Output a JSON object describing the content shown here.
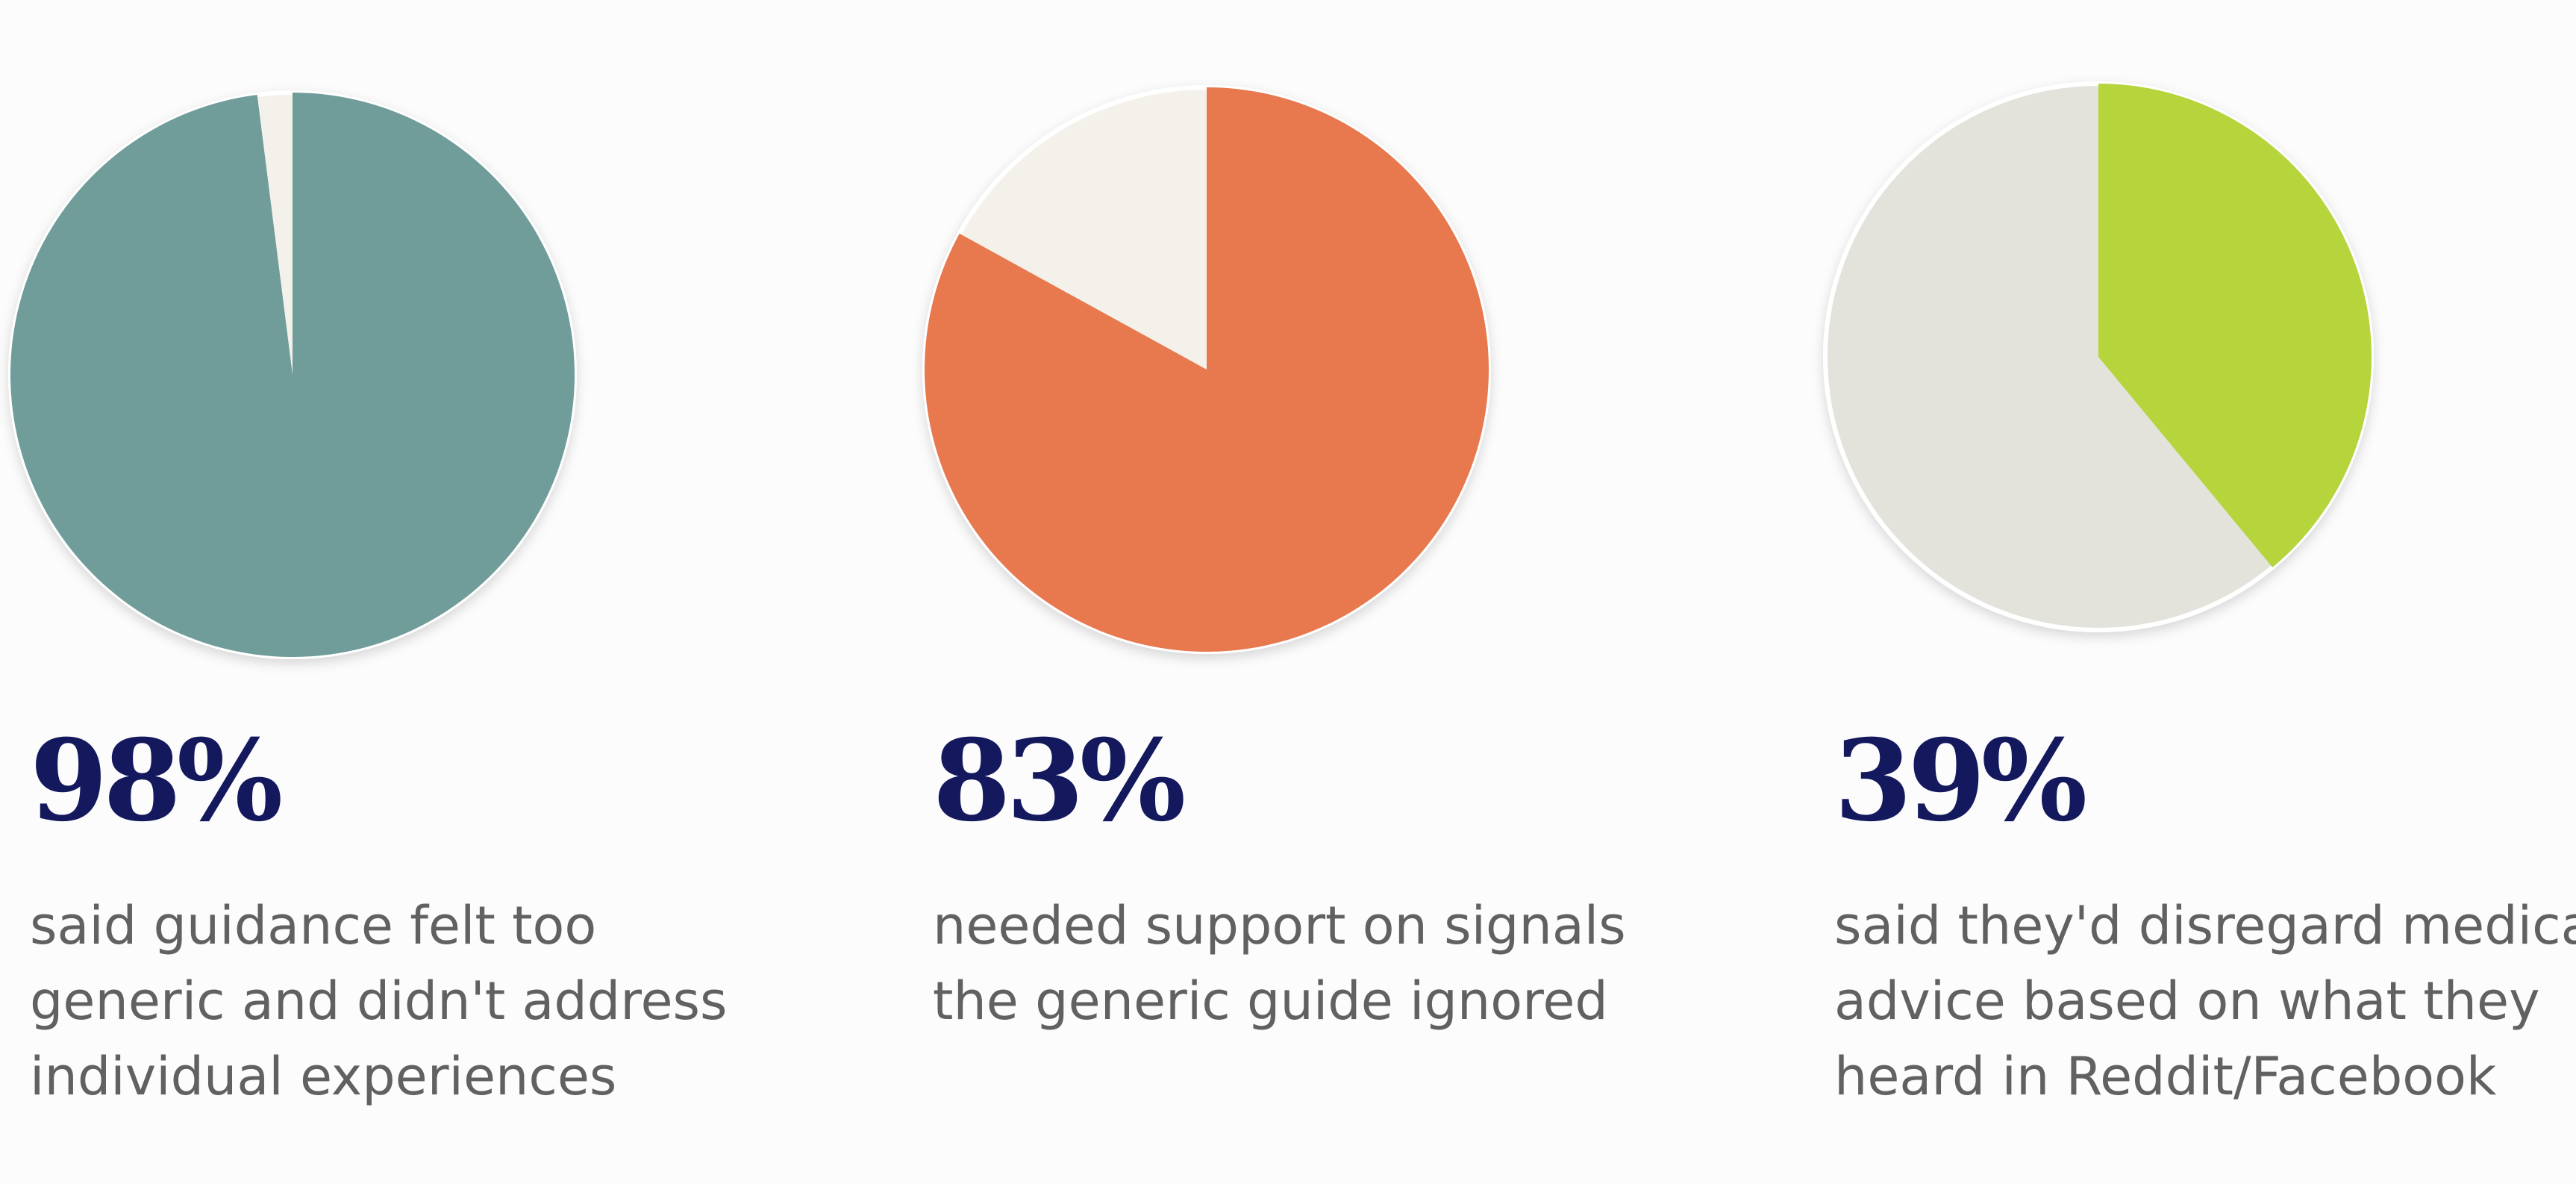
{
  "stats": [
    {
      "value": 98,
      "label": "98%",
      "color": "#6f9d9a",
      "rest_color": "#f4f1ea",
      "text_lines": [
        "said guidance felt too",
        "generic and didn't address",
        "individual experiences"
      ]
    },
    {
      "value": 83,
      "label": "83%",
      "color": "#e8784e",
      "rest_color": "#f4f1ea",
      "text_lines": [
        "needed support on signals",
        "the generic guide ignored"
      ]
    },
    {
      "value": 39,
      "label": "39%",
      "color": "#b6d43a",
      "rest_color": "#e3e3dc",
      "text_lines": [
        "said they'd disregard medical",
        "advice based on what they",
        "heard in Reddit/Facebook"
      ]
    }
  ]
}
